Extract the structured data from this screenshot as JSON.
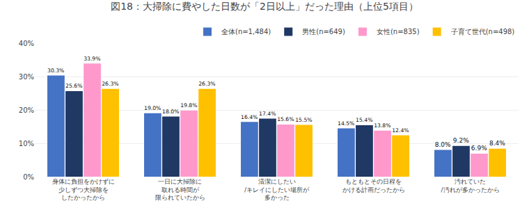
{
  "chart_data": {
    "type": "bar",
    "title": "図18：大掃除に費やした日数が「2日以上」だった理由（上位5項目）",
    "categories": [
      "身体に負担をかけずに\n少しずつ大掃除を\nしたかったから",
      "一日に大掃除に\n取れる時間が\n限られていたから",
      "清潔にしたい\n/キレイにしたい場所が\n多かった",
      "もともとその日程を\nかける計画だったから",
      "汚れていた\n/汚れが多かったから"
    ],
    "series": [
      {
        "name": "全体(n=1,484)",
        "color": "#4472C4",
        "values": [
          30.3,
          19.0,
          16.4,
          14.5,
          8.0
        ],
        "value_labels": [
          "30.3%",
          "19.0%",
          "16.4%",
          "14.5%",
          "8.0%"
        ]
      },
      {
        "name": "男性(n=649)",
        "color": "#1F3864",
        "values": [
          25.6,
          18.0,
          17.4,
          15.4,
          9.2
        ],
        "value_labels": [
          "25.6%",
          "18.0%",
          "17.4%",
          "15.4%",
          "9.2%"
        ]
      },
      {
        "name": "女性(n=835)",
        "color": "#FF99CC",
        "values": [
          33.9,
          19.8,
          15.6,
          13.8,
          6.9
        ],
        "value_labels": [
          "33.9%",
          "19.8%",
          "15.6%",
          "13.8%",
          "6.9%"
        ]
      },
      {
        "name": "子育て世代(n=498)",
        "color": "#FFC000",
        "values": [
          26.3,
          26.3,
          15.5,
          12.4,
          8.4
        ],
        "value_labels": [
          "26.3%",
          "26.3%",
          "15.5%",
          "12.4%",
          "8.4%"
        ]
      }
    ],
    "ylim": [
      0,
      40
    ],
    "yticks": [
      {
        "value": 0,
        "label": "0%"
      },
      {
        "value": 10,
        "label": "10%"
      },
      {
        "value": 20,
        "label": "20%"
      },
      {
        "value": 30,
        "label": "30%"
      },
      {
        "value": 40,
        "label": "40%"
      }
    ],
    "grid": true,
    "legend": "upper right",
    "data_labels": true
  }
}
